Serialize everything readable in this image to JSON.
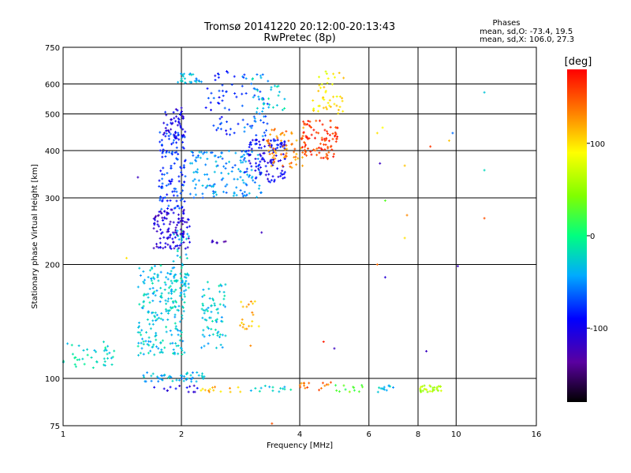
{
  "chart_data": {
    "type": "scatter",
    "title": "Tromsø 20141220 20:12:00-20:13:43",
    "subtitle": "RwPretec (8p)",
    "xlabel": "Frequency [MHz]",
    "ylabel": "Stationary phase Virtual Height [km]",
    "x_scale": "log",
    "y_scale": "log",
    "xlim": [
      1,
      16
    ],
    "ylim": [
      75,
      750
    ],
    "x_ticks": [
      1,
      2,
      4,
      6,
      8,
      10,
      16
    ],
    "x_tick_labels": [
      "1",
      "2",
      "4",
      "6",
      "8",
      "10",
      "16"
    ],
    "y_ticks": [
      75,
      100,
      200,
      300,
      400,
      500,
      600,
      750
    ],
    "y_tick_labels": [
      "75",
      "100",
      "200",
      "300",
      "400",
      "500",
      "600",
      "750"
    ],
    "grid": true,
    "stats": {
      "heading": "Phases",
      "line_o": "mean, sd,O: -73.4, 19.5",
      "line_x": "mean, sd,X: 106.0, 27.3"
    },
    "colorbar": {
      "label": "[deg]",
      "range": [
        -180,
        180
      ],
      "ticks": [
        100,
        0,
        -100
      ],
      "tick_labels": [
        "100",
        "0",
        "-100"
      ]
    },
    "clusters": [
      {
        "x": [
          1.0,
          1.35
        ],
        "y": [
          105,
          125
        ],
        "phase": -20,
        "n": 40
      },
      {
        "x": [
          1.55,
          2.05
        ],
        "y": [
          115,
          200
        ],
        "phase": -30,
        "n": 220
      },
      {
        "x": [
          2.25,
          2.6
        ],
        "y": [
          120,
          180
        ],
        "phase": -30,
        "n": 70
      },
      {
        "x": [
          1.9,
          2.1
        ],
        "y": [
          150,
          250
        ],
        "phase": -30,
        "n": 50
      },
      {
        "x": [
          1.7,
          2.1
        ],
        "y": [
          220,
          280
        ],
        "phase": -110,
        "n": 120
      },
      {
        "x": [
          1.75,
          2.05
        ],
        "y": [
          280,
          450
        ],
        "phase": -75,
        "n": 120
      },
      {
        "x": [
          1.8,
          2.05
        ],
        "y": [
          430,
          520
        ],
        "phase": -100,
        "n": 50
      },
      {
        "x": [
          2.1,
          3.2
        ],
        "y": [
          300,
          400
        ],
        "phase": -50,
        "n": 140
      },
      {
        "x": [
          2.9,
          3.7
        ],
        "y": [
          330,
          430
        ],
        "phase": -95,
        "n": 120
      },
      {
        "x": [
          2.3,
          2.8
        ],
        "y": [
          440,
          650
        ],
        "phase": -80,
        "n": 45
      },
      {
        "x": [
          2.85,
          3.35
        ],
        "y": [
          430,
          650
        ],
        "phase": -60,
        "n": 50
      },
      {
        "x": [
          1.95,
          2.25
        ],
        "y": [
          600,
          640
        ],
        "phase": -40,
        "n": 25
      },
      {
        "x": [
          3.3,
          4.2
        ],
        "y": [
          360,
          460
        ],
        "phase": 130,
        "n": 70
      },
      {
        "x": [
          4.0,
          5.0
        ],
        "y": [
          380,
          480
        ],
        "phase": 160,
        "n": 90
      },
      {
        "x": [
          4.3,
          5.2
        ],
        "y": [
          500,
          650
        ],
        "phase": 95,
        "n": 45
      },
      {
        "x": [
          3.0,
          3.7
        ],
        "y": [
          500,
          640
        ],
        "phase": -20,
        "n": 25
      },
      {
        "x": [
          2.8,
          3.15
        ],
        "y": [
          135,
          160
        ],
        "phase": 115,
        "n": 20
      },
      {
        "x": [
          1.6,
          2.3
        ],
        "y": [
          98,
          104
        ],
        "phase": -40,
        "n": 50
      },
      {
        "x": [
          1.7,
          2.2
        ],
        "y": [
          92,
          96
        ],
        "phase": -100,
        "n": 14
      },
      {
        "x": [
          2.2,
          2.9
        ],
        "y": [
          92,
          96
        ],
        "phase": 110,
        "n": 14
      },
      {
        "x": [
          3.0,
          3.8
        ],
        "y": [
          92,
          96
        ],
        "phase": -30,
        "n": 14
      },
      {
        "x": [
          4.0,
          4.8
        ],
        "y": [
          92,
          98
        ],
        "phase": 140,
        "n": 16
      },
      {
        "x": [
          4.9,
          5.8
        ],
        "y": [
          92,
          96
        ],
        "phase": 30,
        "n": 12
      },
      {
        "x": [
          6.3,
          7.0
        ],
        "y": [
          92,
          96
        ],
        "phase": -30,
        "n": 12
      },
      {
        "x": [
          8.1,
          9.3
        ],
        "y": [
          92,
          96
        ],
        "phase": 60,
        "n": 28
      },
      {
        "x": [
          2.35,
          2.6
        ],
        "y": [
          228,
          232
        ],
        "phase": -120,
        "n": 8
      }
    ],
    "points": [
      {
        "x": 11.8,
        "y": 570,
        "phase": -30
      },
      {
        "x": 11.8,
        "y": 355,
        "phase": -20
      },
      {
        "x": 11.8,
        "y": 265,
        "phase": 150
      },
      {
        "x": 9.8,
        "y": 445,
        "phase": -60
      },
      {
        "x": 9.6,
        "y": 425,
        "phase": 110
      },
      {
        "x": 8.6,
        "y": 410,
        "phase": 160
      },
      {
        "x": 7.4,
        "y": 365,
        "phase": 110
      },
      {
        "x": 7.5,
        "y": 270,
        "phase": 130
      },
      {
        "x": 7.4,
        "y": 235,
        "phase": 100
      },
      {
        "x": 6.6,
        "y": 295,
        "phase": 30
      },
      {
        "x": 6.4,
        "y": 370,
        "phase": -120
      },
      {
        "x": 6.5,
        "y": 460,
        "phase": 90
      },
      {
        "x": 6.3,
        "y": 200,
        "phase": 140
      },
      {
        "x": 6.6,
        "y": 185,
        "phase": -110
      },
      {
        "x": 10.1,
        "y": 198,
        "phase": -120
      },
      {
        "x": 8.4,
        "y": 118,
        "phase": -120
      },
      {
        "x": 4.6,
        "y": 125,
        "phase": 170
      },
      {
        "x": 4.9,
        "y": 120,
        "phase": -120
      },
      {
        "x": 1.45,
        "y": 208,
        "phase": 100
      },
      {
        "x": 1.55,
        "y": 340,
        "phase": -120
      },
      {
        "x": 3.2,
        "y": 243,
        "phase": -120
      },
      {
        "x": 3.0,
        "y": 122,
        "phase": 130
      },
      {
        "x": 3.4,
        "y": 76,
        "phase": 150
      },
      {
        "x": 6.3,
        "y": 445,
        "phase": 100
      }
    ]
  }
}
